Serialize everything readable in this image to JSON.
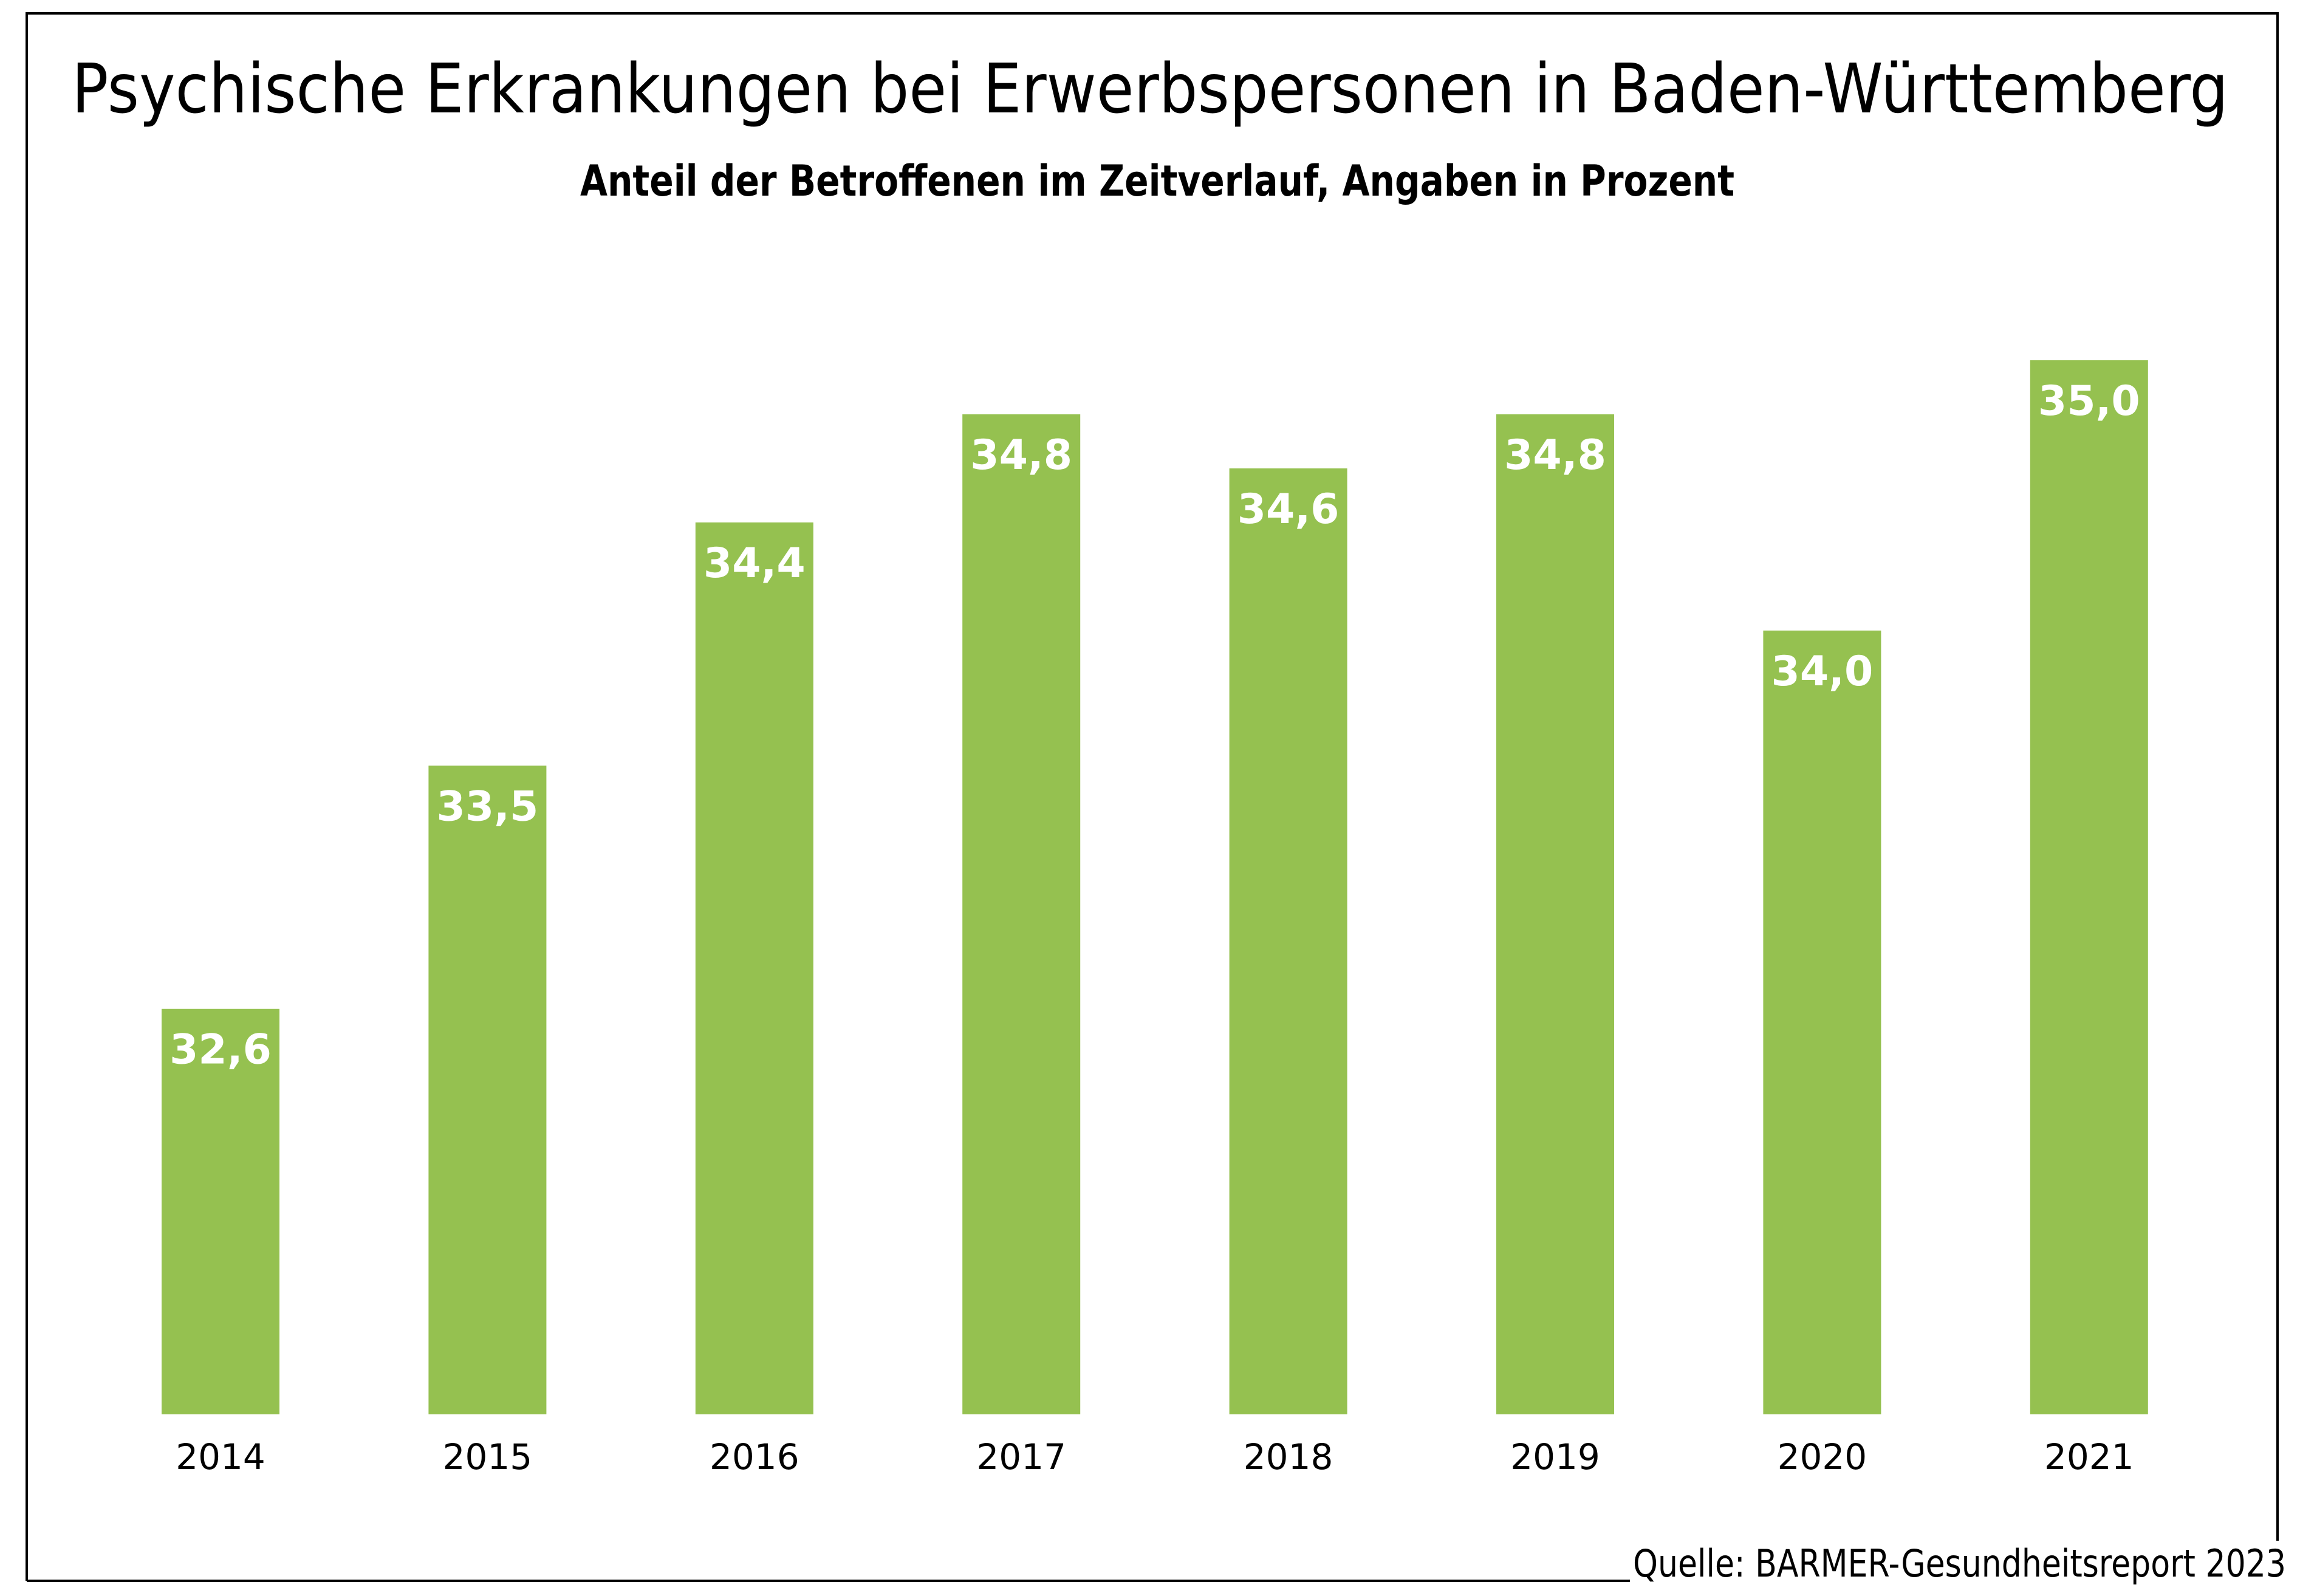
{
  "chart_data": {
    "type": "bar",
    "title": "Psychische Erkrankungen bei Erwerbspersonen in Baden-Württemberg",
    "subtitle": "Anteil der Betroffenen im Zeitverlauf, Angaben in Prozent",
    "categories": [
      "2014",
      "2015",
      "2016",
      "2017",
      "2018",
      "2019",
      "2020",
      "2021"
    ],
    "values": [
      32.6,
      33.5,
      34.4,
      34.8,
      34.6,
      34.8,
      34.0,
      35.0
    ],
    "data_labels": [
      "32,6",
      "33,5",
      "34,4",
      "34,8",
      "34,6",
      "34,8",
      "34,0",
      "35,0"
    ],
    "xlabel": "",
    "ylabel": "",
    "ylim": [
      31.1,
      35.0
    ],
    "grid": false,
    "legend": "none",
    "colors": {
      "bar": "#95C150",
      "label": "#ffffff",
      "text": "#000000"
    }
  },
  "source": "Quelle: BARMER-Gesundheitsreport 2023"
}
